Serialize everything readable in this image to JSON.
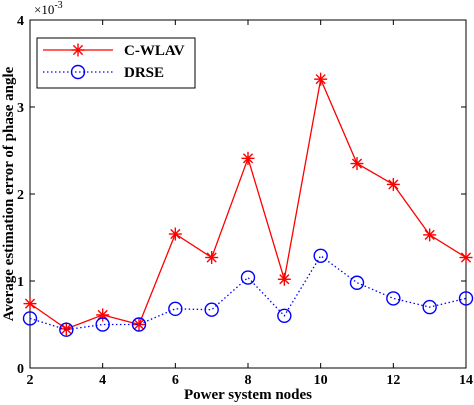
{
  "chart_data": {
    "type": "line",
    "title": "",
    "xlabel": "Power system nodes",
    "ylabel": "Average estimation error of phase angle",
    "y_exponent_label": "×10",
    "y_exponent_power": "-3",
    "xlim": [
      2,
      14
    ],
    "ylim": [
      0,
      4
    ],
    "x_ticks": [
      "2",
      "4",
      "6",
      "8",
      "10",
      "12",
      "14"
    ],
    "y_ticks": [
      "0",
      "1",
      "2",
      "3",
      "4"
    ],
    "x_tick_values": [
      2,
      4,
      6,
      8,
      10,
      12,
      14
    ],
    "y_tick_values": [
      0,
      1,
      2,
      3,
      4
    ],
    "grid": false,
    "legend_position": "top-left",
    "x": [
      2,
      3,
      4,
      5,
      6,
      7,
      8,
      9,
      10,
      11,
      12,
      13,
      14
    ],
    "series": [
      {
        "name": "C-WLAV",
        "color": "#ff0000",
        "line_style": "solid",
        "marker": "asterisk",
        "values": [
          0.74,
          0.45,
          0.61,
          0.5,
          1.54,
          1.27,
          2.41,
          1.02,
          3.32,
          2.35,
          2.11,
          1.53,
          1.27
        ]
      },
      {
        "name": "DRSE",
        "color": "#0000ff",
        "line_style": "dotted",
        "marker": "circle",
        "values": [
          0.57,
          0.44,
          0.5,
          0.5,
          0.68,
          0.67,
          1.04,
          0.6,
          1.29,
          0.98,
          0.8,
          0.7,
          0.8
        ]
      }
    ]
  }
}
